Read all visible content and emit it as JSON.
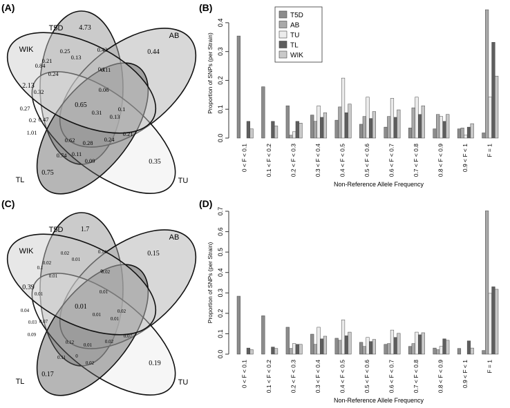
{
  "panel_labels": {
    "a": "(A)",
    "b": "(B)",
    "c": "(C)",
    "d": "(D)"
  },
  "colors": {
    "T5D": "#8c8c8c",
    "AB": "#a9a9a9",
    "TU": "#ececec",
    "TL": "#5e5e5e",
    "WIK": "#c9c9c9"
  },
  "chart_data": [
    {
      "panel": "(A)",
      "type": "venn",
      "sets": [
        "T5D",
        "AB",
        "TU",
        "TL",
        "WIK"
      ],
      "regions": [
        {
          "id": "T5D",
          "value": "4.73"
        },
        {
          "id": "AB",
          "value": "0.44"
        },
        {
          "id": "WIK",
          "value": "2.13"
        },
        {
          "id": "TL",
          "value": "0.75"
        },
        {
          "id": "TU",
          "value": "0.35"
        },
        {
          "id": "r1",
          "value": "0.25"
        },
        {
          "id": "r2",
          "value": "0.43"
        },
        {
          "id": "r3",
          "value": "0.84"
        },
        {
          "id": "r4",
          "value": "0.21"
        },
        {
          "id": "r5",
          "value": "0.13"
        },
        {
          "id": "r6",
          "value": "0.24"
        },
        {
          "id": "r7",
          "value": "0.1"
        },
        {
          "id": "r8",
          "value": "0.11"
        },
        {
          "id": "r9",
          "value": "0.32"
        },
        {
          "id": "r10",
          "value": "0.06"
        },
        {
          "id": "r11",
          "value": "0.65"
        },
        {
          "id": "r12",
          "value": "0.27"
        },
        {
          "id": "r13",
          "value": "0.31"
        },
        {
          "id": "r14",
          "value": "0.1"
        },
        {
          "id": "r15",
          "value": "0.47"
        },
        {
          "id": "r16",
          "value": "0.2"
        },
        {
          "id": "r17",
          "value": "0.13"
        },
        {
          "id": "r18",
          "value": "1.01"
        },
        {
          "id": "r19",
          "value": "0.62"
        },
        {
          "id": "r20",
          "value": "0.28"
        },
        {
          "id": "r21",
          "value": "0.24"
        },
        {
          "id": "r22",
          "value": "0.21"
        },
        {
          "id": "r23",
          "value": "0.74"
        },
        {
          "id": "r24",
          "value": "0.11"
        },
        {
          "id": "r25",
          "value": "0.09"
        }
      ]
    },
    {
      "panel": "(C)",
      "type": "venn",
      "sets": [
        "T5D",
        "AB",
        "TU",
        "TL",
        "WIK"
      ],
      "regions": [
        {
          "id": "T5D",
          "value": "1.7"
        },
        {
          "id": "AB",
          "value": "0.15"
        },
        {
          "id": "WIK",
          "value": "0.39"
        },
        {
          "id": "TL",
          "value": "0.17"
        },
        {
          "id": "TU",
          "value": "0.19"
        },
        {
          "id": "r1",
          "value": "0.02"
        },
        {
          "id": "r2",
          "value": "0.14"
        },
        {
          "id": "r3",
          "value": "0.1"
        },
        {
          "id": "r4",
          "value": "0.02"
        },
        {
          "id": "r5",
          "value": "0.01"
        },
        {
          "id": "r6",
          "value": "0.01"
        },
        {
          "id": "r7",
          "value": "0"
        },
        {
          "id": "r8",
          "value": "0.02"
        },
        {
          "id": "r9",
          "value": "0.01"
        },
        {
          "id": "r10",
          "value": "0.01"
        },
        {
          "id": "r11",
          "value": "0.01"
        },
        {
          "id": "r12",
          "value": "0.04"
        },
        {
          "id": "r13",
          "value": "0.01"
        },
        {
          "id": "r14",
          "value": "0.02"
        },
        {
          "id": "r15",
          "value": "0.07"
        },
        {
          "id": "r16",
          "value": "0.03"
        },
        {
          "id": "r17",
          "value": "0.01"
        },
        {
          "id": "r18",
          "value": "0.09"
        },
        {
          "id": "r19",
          "value": "0.12"
        },
        {
          "id": "r20",
          "value": "0.01"
        },
        {
          "id": "r21",
          "value": "0.02"
        },
        {
          "id": "r22",
          "value": "0.07"
        },
        {
          "id": "r23",
          "value": "0.11"
        },
        {
          "id": "r24",
          "value": "0"
        },
        {
          "id": "r25",
          "value": "0.02"
        }
      ]
    },
    {
      "panel": "(B)",
      "type": "bar",
      "title": "",
      "xlabel": "Non-Reference Allele Frequency",
      "ylabel": "Proportion of SNPs (per Strain)",
      "ylim": [
        0,
        0.45
      ],
      "yticks": [
        "0.0",
        "0.1",
        "0.2",
        "0.3",
        "0.4"
      ],
      "legend_position": "top-left",
      "categories": [
        "0 < F < 0.1",
        "0.1 < F < 0.2",
        "0.2 < F < 0.3",
        "0.3 < F < 0.4",
        "0.4 < F < 0.5",
        "0.5 < F < 0.6",
        "0.6 < F < 0.7",
        "0.7 < F < 0.8",
        "0.8 < F < 0.9",
        "0.9 < F < 1",
        "F = 1"
      ],
      "series": [
        {
          "name": "T5D",
          "values": [
            0.354,
            0.178,
            0.112,
            0.08,
            0.062,
            0.048,
            0.038,
            0.035,
            0.032,
            0.032,
            0.018
          ]
        },
        {
          "name": "AB",
          "values": [
            0.0,
            0.0,
            0.01,
            0.058,
            0.108,
            0.075,
            0.075,
            0.105,
            0.082,
            0.035,
            0.445
          ]
        },
        {
          "name": "TU",
          "values": [
            0.0,
            0.0,
            0.022,
            0.112,
            0.208,
            0.142,
            0.138,
            0.142,
            0.075,
            0.01,
            0.142
          ]
        },
        {
          "name": "TL",
          "values": [
            0.058,
            0.058,
            0.058,
            0.072,
            0.088,
            0.068,
            0.072,
            0.082,
            0.058,
            0.038,
            0.332
          ]
        },
        {
          "name": "WIK",
          "values": [
            0.032,
            0.042,
            0.052,
            0.088,
            0.118,
            0.092,
            0.098,
            0.112,
            0.082,
            0.05,
            0.215
          ]
        }
      ]
    },
    {
      "panel": "(D)",
      "type": "bar",
      "title": "",
      "xlabel": "Non-Reference Allele Frequency",
      "ylabel": "Proportion of SNPs (per Strain)",
      "ylim": [
        0,
        0.7
      ],
      "yticks": [
        "0.0",
        "0.1",
        "0.2",
        "0.3",
        "0.4",
        "0.5",
        "0.6",
        "0.7"
      ],
      "categories": [
        "0 < F < 0.1",
        "0.1 < F < 0.2",
        "0.2 < F < 0.3",
        "0.3 < F < 0.4",
        "0.4 < F < 0.5",
        "0.5 < F < 0.6",
        "0.6 < F < 0.7",
        "0.7 < F < 0.8",
        "0.8 < F < 0.9",
        "0.9 < F < 1",
        "F = 1"
      ],
      "series": [
        {
          "name": "T5D",
          "values": [
            0.284,
            0.188,
            0.132,
            0.098,
            0.078,
            0.058,
            0.048,
            0.038,
            0.03,
            0.028,
            0.018
          ]
        },
        {
          "name": "AB",
          "values": [
            0.0,
            0.0,
            0.028,
            0.048,
            0.068,
            0.038,
            0.052,
            0.052,
            0.022,
            0.0,
            0.702
          ]
        },
        {
          "name": "TU",
          "values": [
            0.0,
            0.0,
            0.052,
            0.132,
            0.168,
            0.082,
            0.118,
            0.108,
            0.038,
            0.0,
            0.298
          ]
        },
        {
          "name": "TL",
          "values": [
            0.03,
            0.035,
            0.048,
            0.075,
            0.09,
            0.062,
            0.082,
            0.095,
            0.075,
            0.065,
            0.33
          ]
        },
        {
          "name": "WIK",
          "values": [
            0.022,
            0.028,
            0.048,
            0.088,
            0.108,
            0.072,
            0.102,
            0.105,
            0.068,
            0.03,
            0.318
          ]
        }
      ]
    }
  ]
}
